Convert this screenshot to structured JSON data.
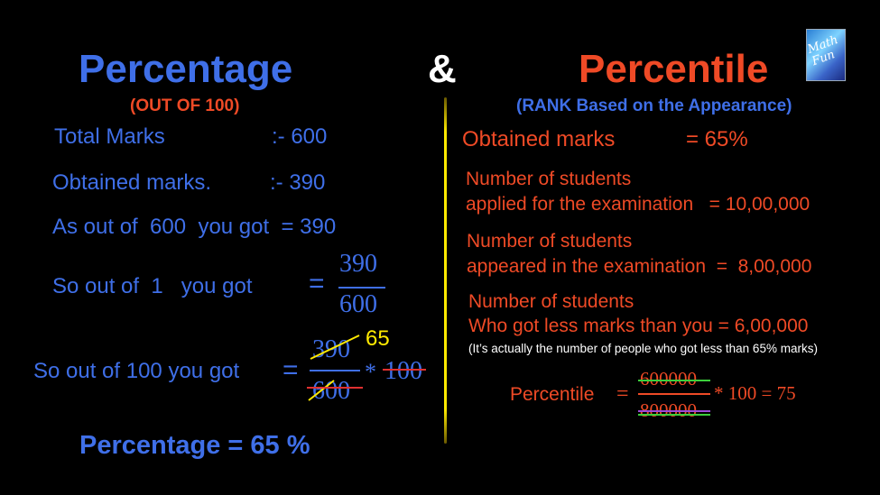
{
  "header": {
    "left_title": "Percentage",
    "left_subtitle": "(OUT OF 100)",
    "ampersand": "&",
    "right_title": "Percentile",
    "right_subtitle": "(RANK Based on the Appearance)"
  },
  "left": {
    "total_label": "Total Marks",
    "total_value": ":- 600",
    "obtained_label": "Obtained marks.",
    "obtained_value": ":- 390",
    "line3": "As out of  600  you got  = 390",
    "line4_label": "So out of  1   you got",
    "eq": "=",
    "frac1_num": "390",
    "frac1_den": "600",
    "line5_label": "So out of 100 you got",
    "frac2_num": "390",
    "frac2_den": "600",
    "frac2_annot": "65",
    "times": "*",
    "hundred": "100",
    "result": "Percentage = 65 %"
  },
  "right": {
    "obtained_label": "Obtained marks",
    "obtained_value": "= 65%",
    "applied_l1": "Number of students",
    "applied_l2": "applied for the examination   = 10,00,000",
    "appeared_l1": "Number of students",
    "appeared_l2": "appeared in the examination  =  8,00,000",
    "less_l1": "Number of students",
    "less_l2": "Who got less marks than you = 6,00,000",
    "note": "(It’s actually the number of people who got less than 65% marks)",
    "pct_label": "Percentile",
    "eq": "=",
    "num": "600000",
    "den": "800000",
    "tail": "* 100 = 75"
  },
  "colors": {
    "blue": "#3f6fe8",
    "red": "#ef4a26",
    "yellow": "#ffea00",
    "green": "#3ccf3c",
    "purple": "#9b4ad9"
  },
  "logo": {
    "name": "channel-logo"
  }
}
